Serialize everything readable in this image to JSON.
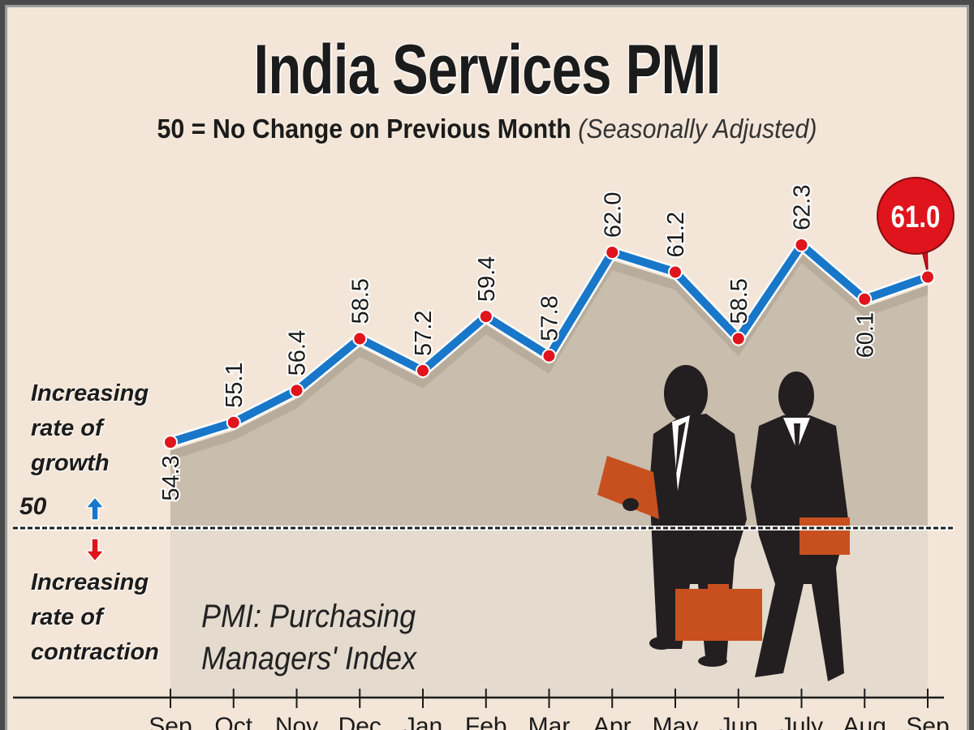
{
  "header": {
    "title": "India Services PMI",
    "subtitle_main": "50 = No Change on Previous Month",
    "subtitle_note": "(Seasonally Adjusted)"
  },
  "annotations": {
    "growth_label": [
      "Increasing",
      "rate of",
      "growth"
    ],
    "contraction_label": [
      "Increasing",
      "rate of",
      "contraction"
    ],
    "baseline_label": "50",
    "pmi_definition": [
      "PMI: Purchasing",
      "Managers' Index"
    ],
    "up_arrow_icon": "arrow-up",
    "down_arrow_icon": "arrow-down"
  },
  "colors": {
    "background": "#f3e6d8",
    "line": "#1877c9",
    "marker": "#e0141c",
    "fill_above": "#c9bdae",
    "fill_below": "#e4dace",
    "callout": "#e0141c",
    "arrow_up": "#1877c9",
    "arrow_down": "#e0141c",
    "suit": "#231f20",
    "briefcase": "#c8501f"
  },
  "chart_data": {
    "type": "line",
    "title": "India Services PMI",
    "subtitle": "50 = No Change on Previous Month (Seasonally Adjusted)",
    "xlabel": "",
    "ylabel": "",
    "categories": [
      "Sep",
      "Oct",
      "Nov",
      "Dec",
      "Jan",
      "Feb",
      "Mar",
      "Apr",
      "May",
      "Jun",
      "July",
      "Aug",
      "Sep"
    ],
    "values": [
      54.3,
      55.1,
      56.4,
      58.5,
      57.2,
      59.4,
      57.8,
      62.0,
      61.2,
      58.5,
      62.3,
      60.1,
      61.0
    ],
    "value_labels": [
      "54.3",
      "55.1",
      "56.4",
      "58.5",
      "57.2",
      "59.4",
      "57.8",
      "62.0",
      "61.2",
      "58.5",
      "62.3",
      "60.1",
      "61.0"
    ],
    "reference_line": 50,
    "highlight": {
      "index": 12,
      "label": "61.0"
    },
    "grid": false,
    "legend": "none"
  }
}
